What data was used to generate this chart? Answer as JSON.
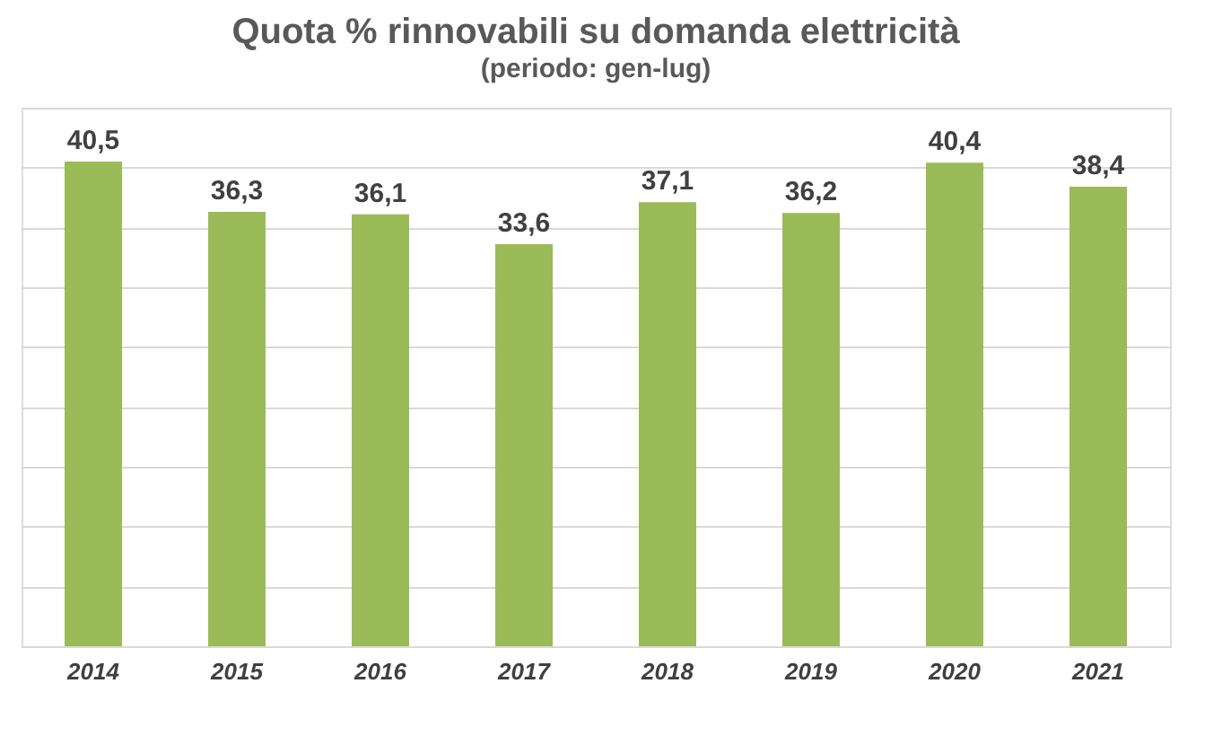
{
  "chart_data": {
    "type": "bar",
    "title": "Quota % rinnovabili su domanda elettricità",
    "subtitle": "(periodo: gen-lug)",
    "categories": [
      "2014",
      "2015",
      "2016",
      "2017",
      "2018",
      "2019",
      "2020",
      "2021"
    ],
    "values": [
      40.5,
      36.3,
      36.1,
      33.6,
      37.1,
      36.2,
      40.4,
      38.4
    ],
    "value_labels": [
      "40,5",
      "36,3",
      "36,1",
      "33,6",
      "37,1",
      "36,2",
      "40,4",
      "38,4"
    ],
    "color": "#9bbb59",
    "ylim": [
      0,
      45
    ],
    "yticks": [
      {
        "value": 0,
        "label": null
      },
      {
        "value": 5,
        "label": null
      },
      {
        "value": 10,
        "label": null
      },
      {
        "value": 15,
        "label": null
      },
      {
        "value": 20,
        "label": null
      },
      {
        "value": 25,
        "label": null
      },
      {
        "value": 30,
        "label": null
      },
      {
        "value": 35,
        "label": null
      },
      {
        "value": 40,
        "label": null
      },
      {
        "value": 45,
        "label": null
      }
    ],
    "grid": "y",
    "tick_labels": "x"
  }
}
